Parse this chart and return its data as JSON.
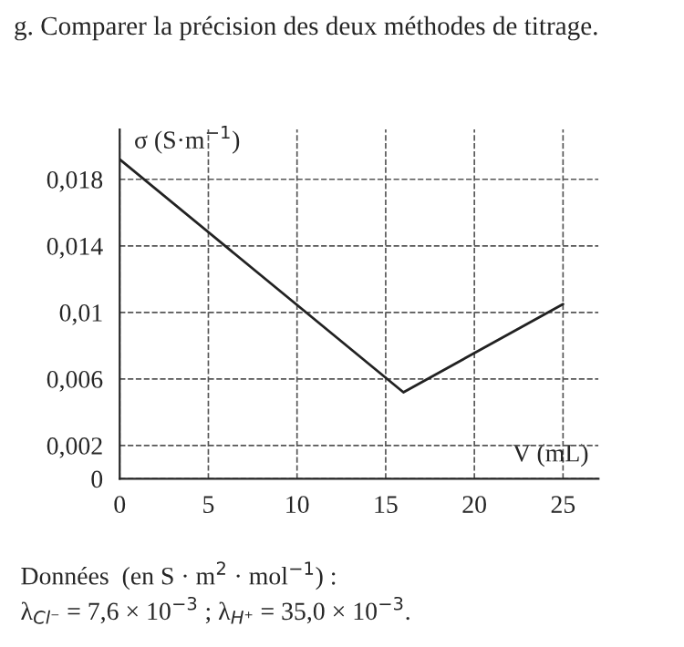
{
  "chart_data": {
    "type": "line",
    "title": "g. Comparer la précision des deux méthodes de titrage.",
    "xlabel": "V (mL)",
    "ylabel": "σ (S·m$^{−1}$)",
    "x": [
      0,
      16,
      25
    ],
    "series": [
      {
        "color": "#222222",
        "values": [
          0.0192,
          0.0052,
          0.0105
        ]
      }
    ],
    "xlim": [
      0,
      27
    ],
    "ylim": [
      0,
      0.021
    ],
    "xticks": [
      0,
      5,
      10,
      15,
      20,
      25
    ],
    "yticks": [
      0,
      {
        "value": 0.002,
        "label": "0,002"
      },
      {
        "value": 0.006,
        "label": "0,006"
      },
      {
        "value": 0.01,
        "label": "0,01"
      },
      {
        "value": 0.014,
        "label": "0,014"
      },
      {
        "value": 0.018,
        "label": "0,018"
      }
    ],
    "grid": true,
    "marker": "none",
    "line_style": "solid",
    "annotations": [
      "Données  (en S · m$^{2}$ · mol$^{−1}$) :",
      "λ$_{Cl⁻}$ = 7,6 × 10$^{−3}$ ; λ$_{H⁺}$ = 35,0 × 10$^{−3}$."
    ]
  }
}
